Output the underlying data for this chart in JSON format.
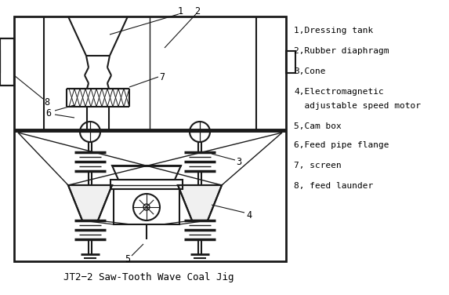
{
  "title": "JT2−2 Saw-Tooth Wave Coal Jig",
  "legend_lines": [
    "1,Dressing tank",
    "2,Rubber diaphragm",
    "3,Cone",
    "4,Electromagnetic",
    "  adjustable speed motor",
    "5,Cam box",
    "6,Feed pipe flange",
    "7, screen",
    "8, feed launder"
  ],
  "line_color": "#1a1a1a",
  "bg_color": "#ffffff",
  "title_fontsize": 9,
  "legend_fontsize": 8
}
